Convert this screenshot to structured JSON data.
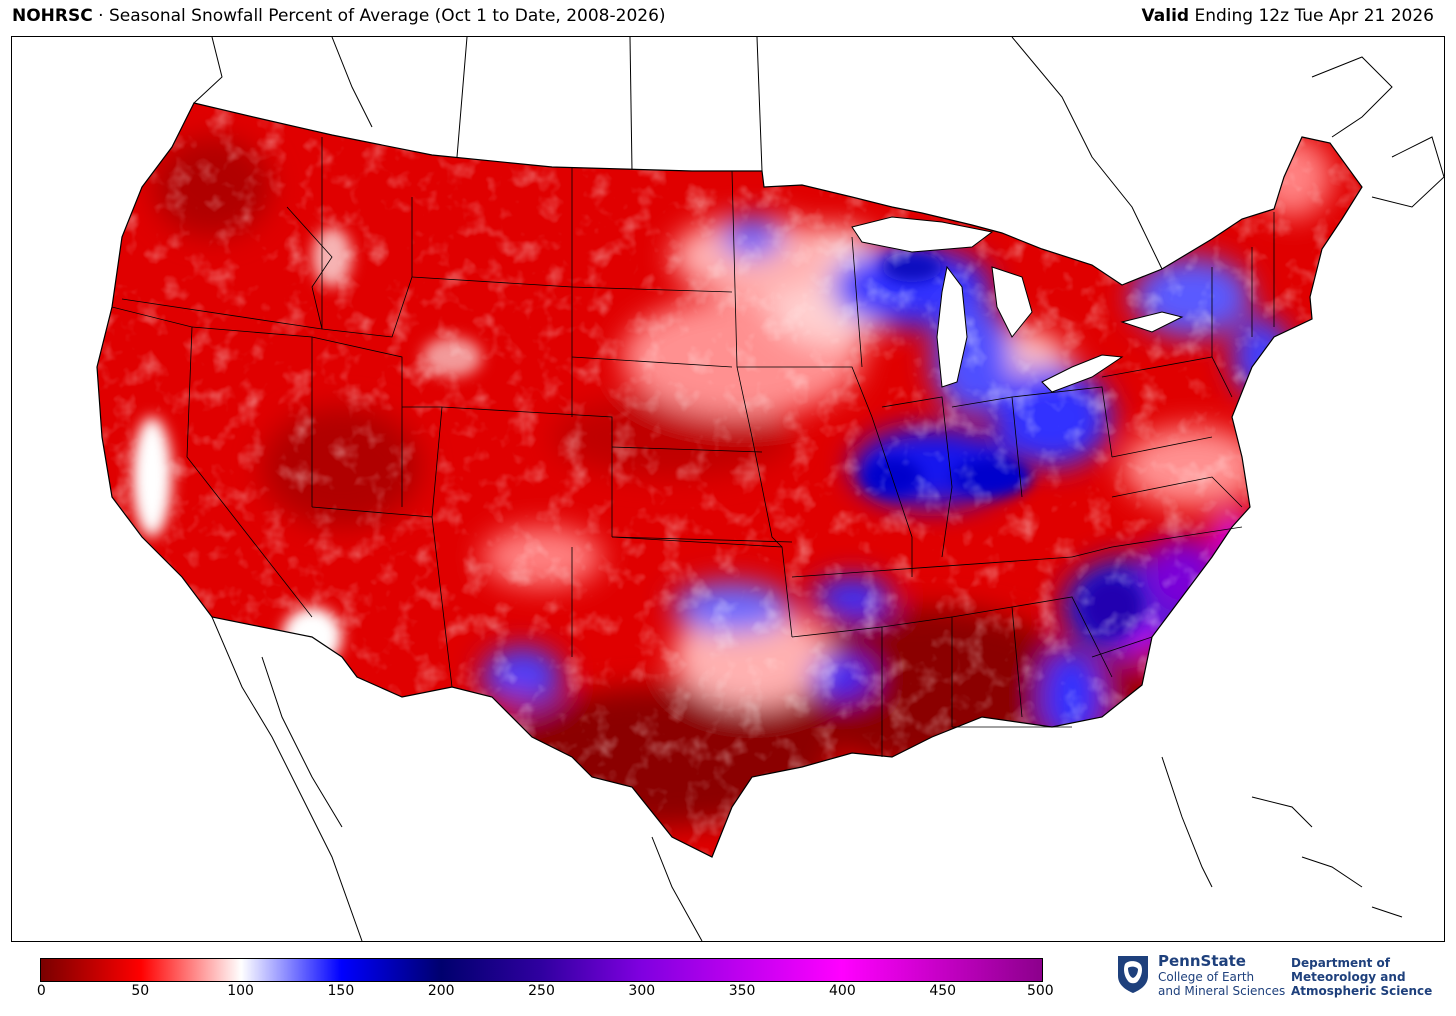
{
  "header": {
    "org": "NOHRSC",
    "separator": "·",
    "title": "Seasonal Snowfall Percent of Average (Oct 1 to Date, 2008-2026)",
    "valid_label": "Valid",
    "valid_text": "Ending 12z Tue Apr 21 2026"
  },
  "colorbar": {
    "ticks": [
      "0",
      "50",
      "100",
      "150",
      "200",
      "250",
      "300",
      "350",
      "400",
      "450",
      "500"
    ],
    "stops": [
      "#7a0000",
      "#ff0000",
      "#ffffff",
      "#0000ff",
      "#00006e",
      "#5a00c8",
      "#c000ff",
      "#ff00ff",
      "#8c008c"
    ]
  },
  "logo": {
    "icon": "nittany-lion-shield-icon",
    "name": "PennState",
    "college_line1": "College of Earth",
    "college_line2": "and Mineral Sciences",
    "dept_line1": "Department of",
    "dept_line2": "Meteorology and",
    "dept_line3": "Atmospheric Science"
  },
  "map": {
    "region": "Contiguous United States",
    "colors": {
      "dark_red": "#8b0000",
      "red": "#e00000",
      "pink": "#ff9c9c",
      "white": "#ffffff",
      "blue": "#2020ff",
      "dark_blue": "#1010b0",
      "purple": "#7a00d8",
      "magenta": "#d000f0"
    }
  }
}
